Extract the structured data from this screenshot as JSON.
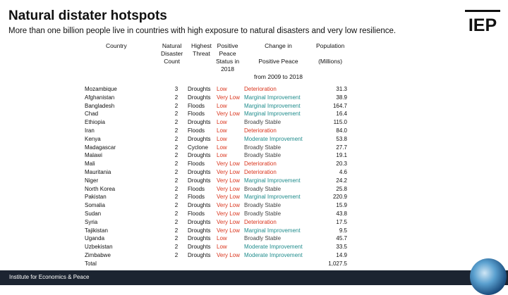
{
  "title": "Natural distater hotspots",
  "subtitle": "More than one billion people live in countries with high exposure to natural disasters and very low resilience.",
  "logo_text": "IEP",
  "footer": "Institute for Economics & Peace",
  "colors": {
    "low": "#d9341c",
    "very_low": "#d9341c",
    "deterioration": "#d9341c",
    "improvement": "#1f8c8c",
    "stable": "#444444",
    "bottom_bar": "#1c2431"
  },
  "headers": {
    "country": "Country",
    "count": "Natural\nDisaster\nCount",
    "threat": "Highest\nThreat",
    "peace": "Positive\nPeace\nStatus in\n2018",
    "change": "Change in\n\nPositive Peace\n\nfrom 2009 to 2018",
    "population": "Population\n\n(Millions)"
  },
  "rows": [
    {
      "country": "Mozambique",
      "count": "3",
      "threat": "Droughts",
      "peace": "Low",
      "change": "Deterioration",
      "pop": "31.3"
    },
    {
      "country": "Afghanistan",
      "count": "2",
      "threat": "Droughts",
      "peace": "Very Low",
      "change": "Marginal Improvement",
      "pop": "38.9"
    },
    {
      "country": "Bangladesh",
      "count": "2",
      "threat": "Floods",
      "peace": "Low",
      "change": "Marginal Improvement",
      "pop": "164.7"
    },
    {
      "country": "Chad",
      "count": "2",
      "threat": "Floods",
      "peace": "Very Low",
      "change": "Marginal Improvement",
      "pop": "16.4"
    },
    {
      "country": "Ethiopia",
      "count": "2",
      "threat": "Droughts",
      "peace": "Low",
      "change": "Broadly Stable",
      "pop": "115.0"
    },
    {
      "country": "Iran",
      "count": "2",
      "threat": "Floods",
      "peace": "Low",
      "change": "Deterioration",
      "pop": "84.0"
    },
    {
      "country": "Kenya",
      "count": "2",
      "threat": "Droughts",
      "peace": "Low",
      "change": "Moderate Improvement",
      "pop": "53.8"
    },
    {
      "country": "Madagascar",
      "count": "2",
      "threat": "Cyclone",
      "peace": "Low",
      "change": "Broadly Stable",
      "pop": "27.7"
    },
    {
      "country": "Malawi",
      "count": "2",
      "threat": "Droughts",
      "peace": "Low",
      "change": "Broadly Stable",
      "pop": "19.1"
    },
    {
      "country": "Mali",
      "count": "2",
      "threat": "Floods",
      "peace": "Very Low",
      "change": "Deterioration",
      "pop": "20.3"
    },
    {
      "country": "Mauritania",
      "count": "2",
      "threat": "Droughts",
      "peace": "Very Low",
      "change": "Deterioration",
      "pop": "4.6"
    },
    {
      "country": "Niger",
      "count": "2",
      "threat": "Droughts",
      "peace": "Very Low",
      "change": "Marginal Improvement",
      "pop": "24.2"
    },
    {
      "country": "North Korea",
      "count": "2",
      "threat": "Floods",
      "peace": "Very Low",
      "change": "Broadly Stable",
      "pop": "25.8"
    },
    {
      "country": "Pakistan",
      "count": "2",
      "threat": "Floods",
      "peace": "Very Low",
      "change": "Marginal Improvement",
      "pop": "220.9"
    },
    {
      "country": "Somalia",
      "count": "2",
      "threat": "Droughts",
      "peace": "Very Low",
      "change": "Broadly Stable",
      "pop": "15.9"
    },
    {
      "country": "Sudan",
      "count": "2",
      "threat": "Floods",
      "peace": "Very Low",
      "change": "Broadly Stable",
      "pop": "43.8"
    },
    {
      "country": "Syria",
      "count": "2",
      "threat": "Droughts",
      "peace": "Very Low",
      "change": "Deterioration",
      "pop": "17.5"
    },
    {
      "country": "Tajikistan",
      "count": "2",
      "threat": "Droughts",
      "peace": "Very Low",
      "change": "Marginal Improvement",
      "pop": "9.5"
    },
    {
      "country": "Uganda",
      "count": "2",
      "threat": "Droughts",
      "peace": "Low",
      "change": "Broadly Stable",
      "pop": "45.7"
    },
    {
      "country": "Uzbekistan",
      "count": "2",
      "threat": "Droughts",
      "peace": "Low",
      "change": "Moderate Improvement",
      "pop": "33.5"
    },
    {
      "country": "Zimbabwe",
      "count": "2",
      "threat": "Droughts",
      "peace": "Very Low",
      "change": "Moderate Improvement",
      "pop": "14.9"
    }
  ],
  "total": {
    "label": "Total",
    "pop": "1,027.5"
  }
}
